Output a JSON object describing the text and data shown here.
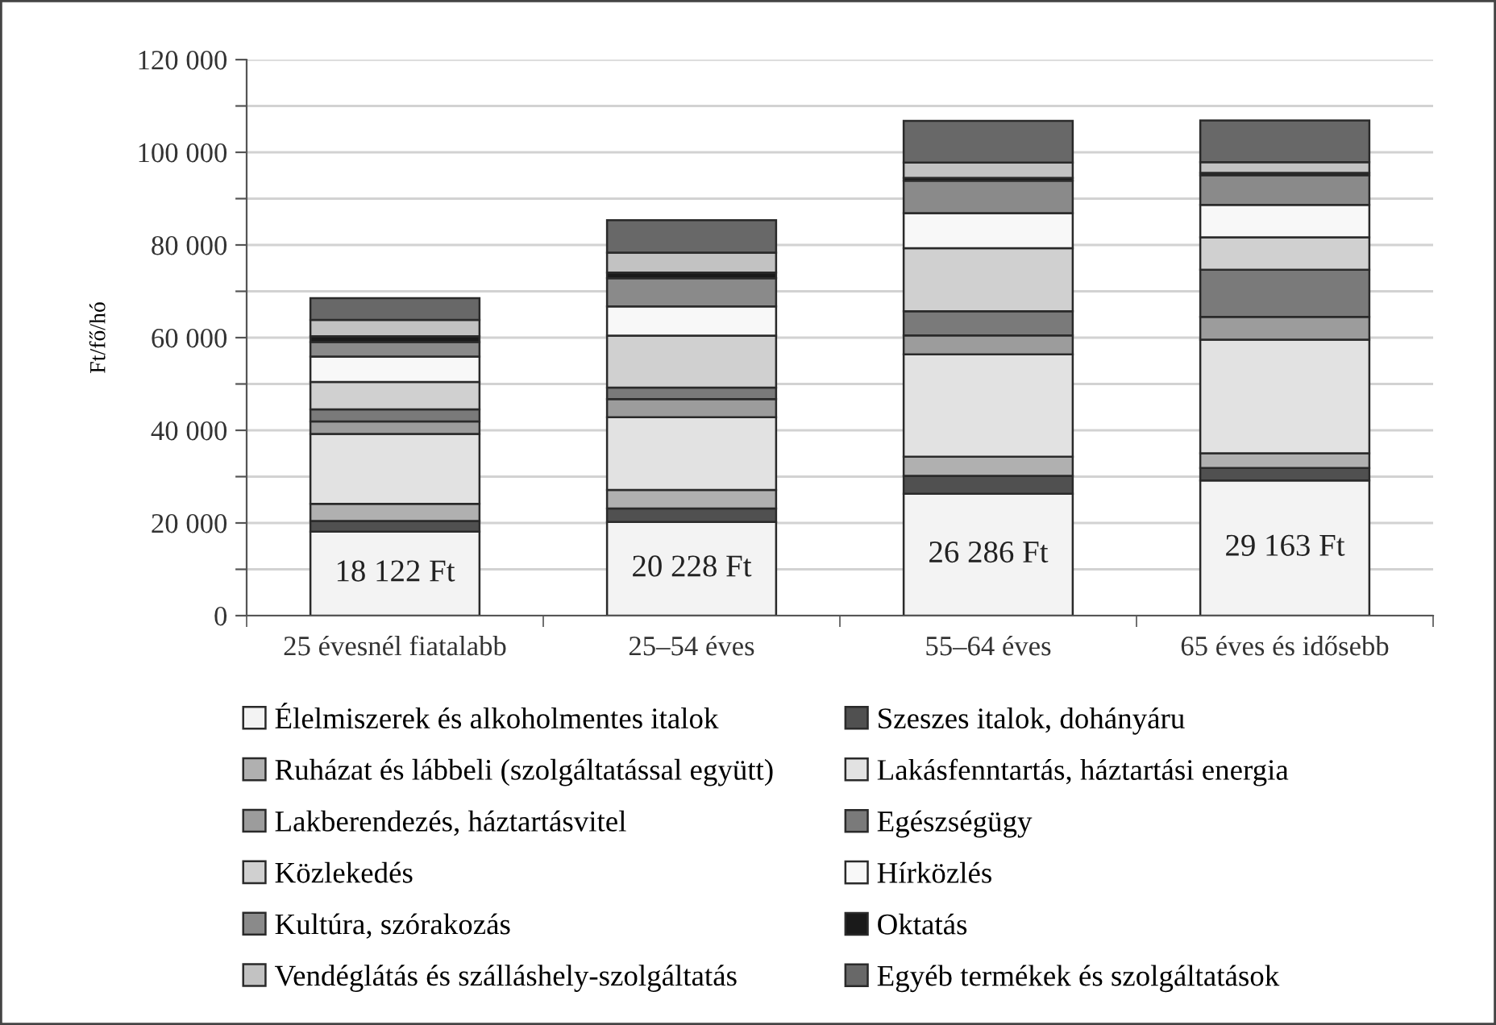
{
  "chart_data": {
    "type": "bar",
    "stacked": true,
    "ylabel": "Ft/fő/hó",
    "categories": [
      "25 évesnél fiatalabb",
      "25–54 éves",
      "55–64 éves",
      "65 éves és idősebb"
    ],
    "ylim": [
      0,
      120000
    ],
    "yticks": [
      {
        "value": 0,
        "label": "0"
      },
      {
        "value": 10000,
        "label": null
      },
      {
        "value": 20000,
        "label": "20 000"
      },
      {
        "value": 30000,
        "label": null
      },
      {
        "value": 40000,
        "label": "40 000"
      },
      {
        "value": 50000,
        "label": null
      },
      {
        "value": 60000,
        "label": "60 000"
      },
      {
        "value": 70000,
        "label": null
      },
      {
        "value": 80000,
        "label": "80 000"
      },
      {
        "value": 90000,
        "label": null
      },
      {
        "value": 100000,
        "label": "100 000"
      },
      {
        "value": 110000,
        "label": null
      },
      {
        "value": 120000,
        "label": "120 000"
      }
    ],
    "grid": "y",
    "legend": "bottom",
    "series": [
      {
        "name": "Élelmiszerek és alkoholmentes italok",
        "color": "#f3f3f3",
        "values": [
          18122,
          20228,
          26286,
          29163
        ],
        "value_labels": [
          "18 122 Ft",
          "20 228 Ft",
          "26 286 Ft",
          "29 163 Ft"
        ]
      },
      {
        "name": "Szeszes italok, dohányáru",
        "color": "#505050",
        "values": [
          2300,
          2900,
          3900,
          2700
        ]
      },
      {
        "name": "Ruházat és lábbeli (szolgáltatással együtt)",
        "color": "#b0b0b0",
        "values": [
          3700,
          4000,
          4100,
          3200
        ]
      },
      {
        "name": "Lakásfenntartás, háztartási energia",
        "color": "#e2e2e2",
        "values": [
          15100,
          15700,
          22100,
          24500
        ]
      },
      {
        "name": "Lakberendezés, háztartásvitel",
        "color": "#9c9c9c",
        "values": [
          2700,
          3900,
          4100,
          4900
        ]
      },
      {
        "name": "Egészségügy",
        "color": "#7a7a7a",
        "values": [
          2600,
          2500,
          5200,
          10200
        ]
      },
      {
        "name": "Közlekedés",
        "color": "#d0d0d0",
        "values": [
          5900,
          11200,
          13600,
          7000
        ]
      },
      {
        "name": "Hírközlés",
        "color": "#f8f8f8",
        "values": [
          5500,
          6300,
          7600,
          7000
        ]
      },
      {
        "name": "Kultúra, szórakozás",
        "color": "#8a8a8a",
        "values": [
          3100,
          6100,
          7000,
          6400
        ]
      },
      {
        "name": "Oktatás",
        "color": "#1a1a1a",
        "values": [
          1300,
          1200,
          600,
          500
        ]
      },
      {
        "name": "Vendéglátás és szálláshely-szolgáltatás",
        "color": "#c2c2c2",
        "values": [
          3500,
          4300,
          3300,
          2300
        ]
      },
      {
        "name": "Egyéb termékek és szolgáltatások",
        "color": "#686868",
        "values": [
          4700,
          7000,
          9000,
          9000
        ]
      }
    ]
  }
}
